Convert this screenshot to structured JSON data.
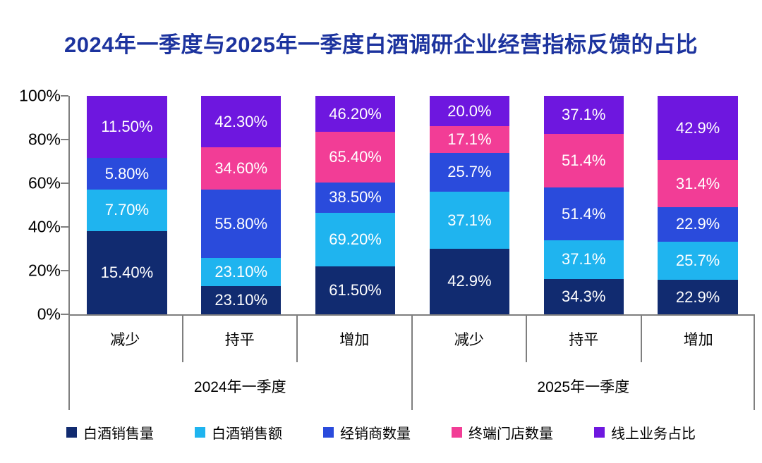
{
  "page": {
    "background": "#ffffff"
  },
  "chart_data": {
    "type": "bar",
    "stacked": "100%",
    "title": "2024年一季度与2025年一季度白酒调研企业经营指标反馈的占比",
    "y_axis": {
      "tick_labels": [
        "100%",
        "80%",
        "60%",
        "40%",
        "20%",
        "0%"
      ],
      "min": 0,
      "max": 100,
      "grid": false
    },
    "x_axis": {
      "groups": [
        {
          "label": "2024年一季度",
          "categories": [
            "减少",
            "持平",
            "增加"
          ]
        },
        {
          "label": "2025年一季度",
          "categories": [
            "减少",
            "持平",
            "增加"
          ]
        }
      ]
    },
    "legend_position": "bottom",
    "note": "each column's segments are drawn normalized so the stack fills 100% height",
    "series": [
      {
        "name": "白酒销售量",
        "color": "#112B70",
        "values": [
          "15.40%",
          "23.10%",
          "61.50%",
          "42.9%",
          "34.3%",
          "22.9%"
        ]
      },
      {
        "name": "白酒销售额",
        "color": "#1FB4EF",
        "values": [
          "7.70%",
          "23.10%",
          "69.20%",
          "37.1%",
          "37.1%",
          "25.7%"
        ]
      },
      {
        "name": "经销商数量",
        "color": "#2A4BDC",
        "values": [
          "5.80%",
          "55.80%",
          "38.50%",
          "25.7%",
          "51.4%",
          "22.9%"
        ]
      },
      {
        "name": "终端门店数量",
        "color": "#F23D96",
        "values": [
          null,
          "34.60%",
          "65.40%",
          "17.1%",
          "51.4%",
          "31.4%"
        ]
      },
      {
        "name": "线上业务占比",
        "color": "#6E17DF",
        "values": [
          "11.50%",
          "42.30%",
          "46.20%",
          "20.0%",
          "37.1%",
          "42.9%"
        ]
      }
    ],
    "colors": {
      "title": "#1C339E",
      "axis": "#7f7f7f",
      "value_label": "#ffffff",
      "tick_label": "#000000"
    }
  }
}
